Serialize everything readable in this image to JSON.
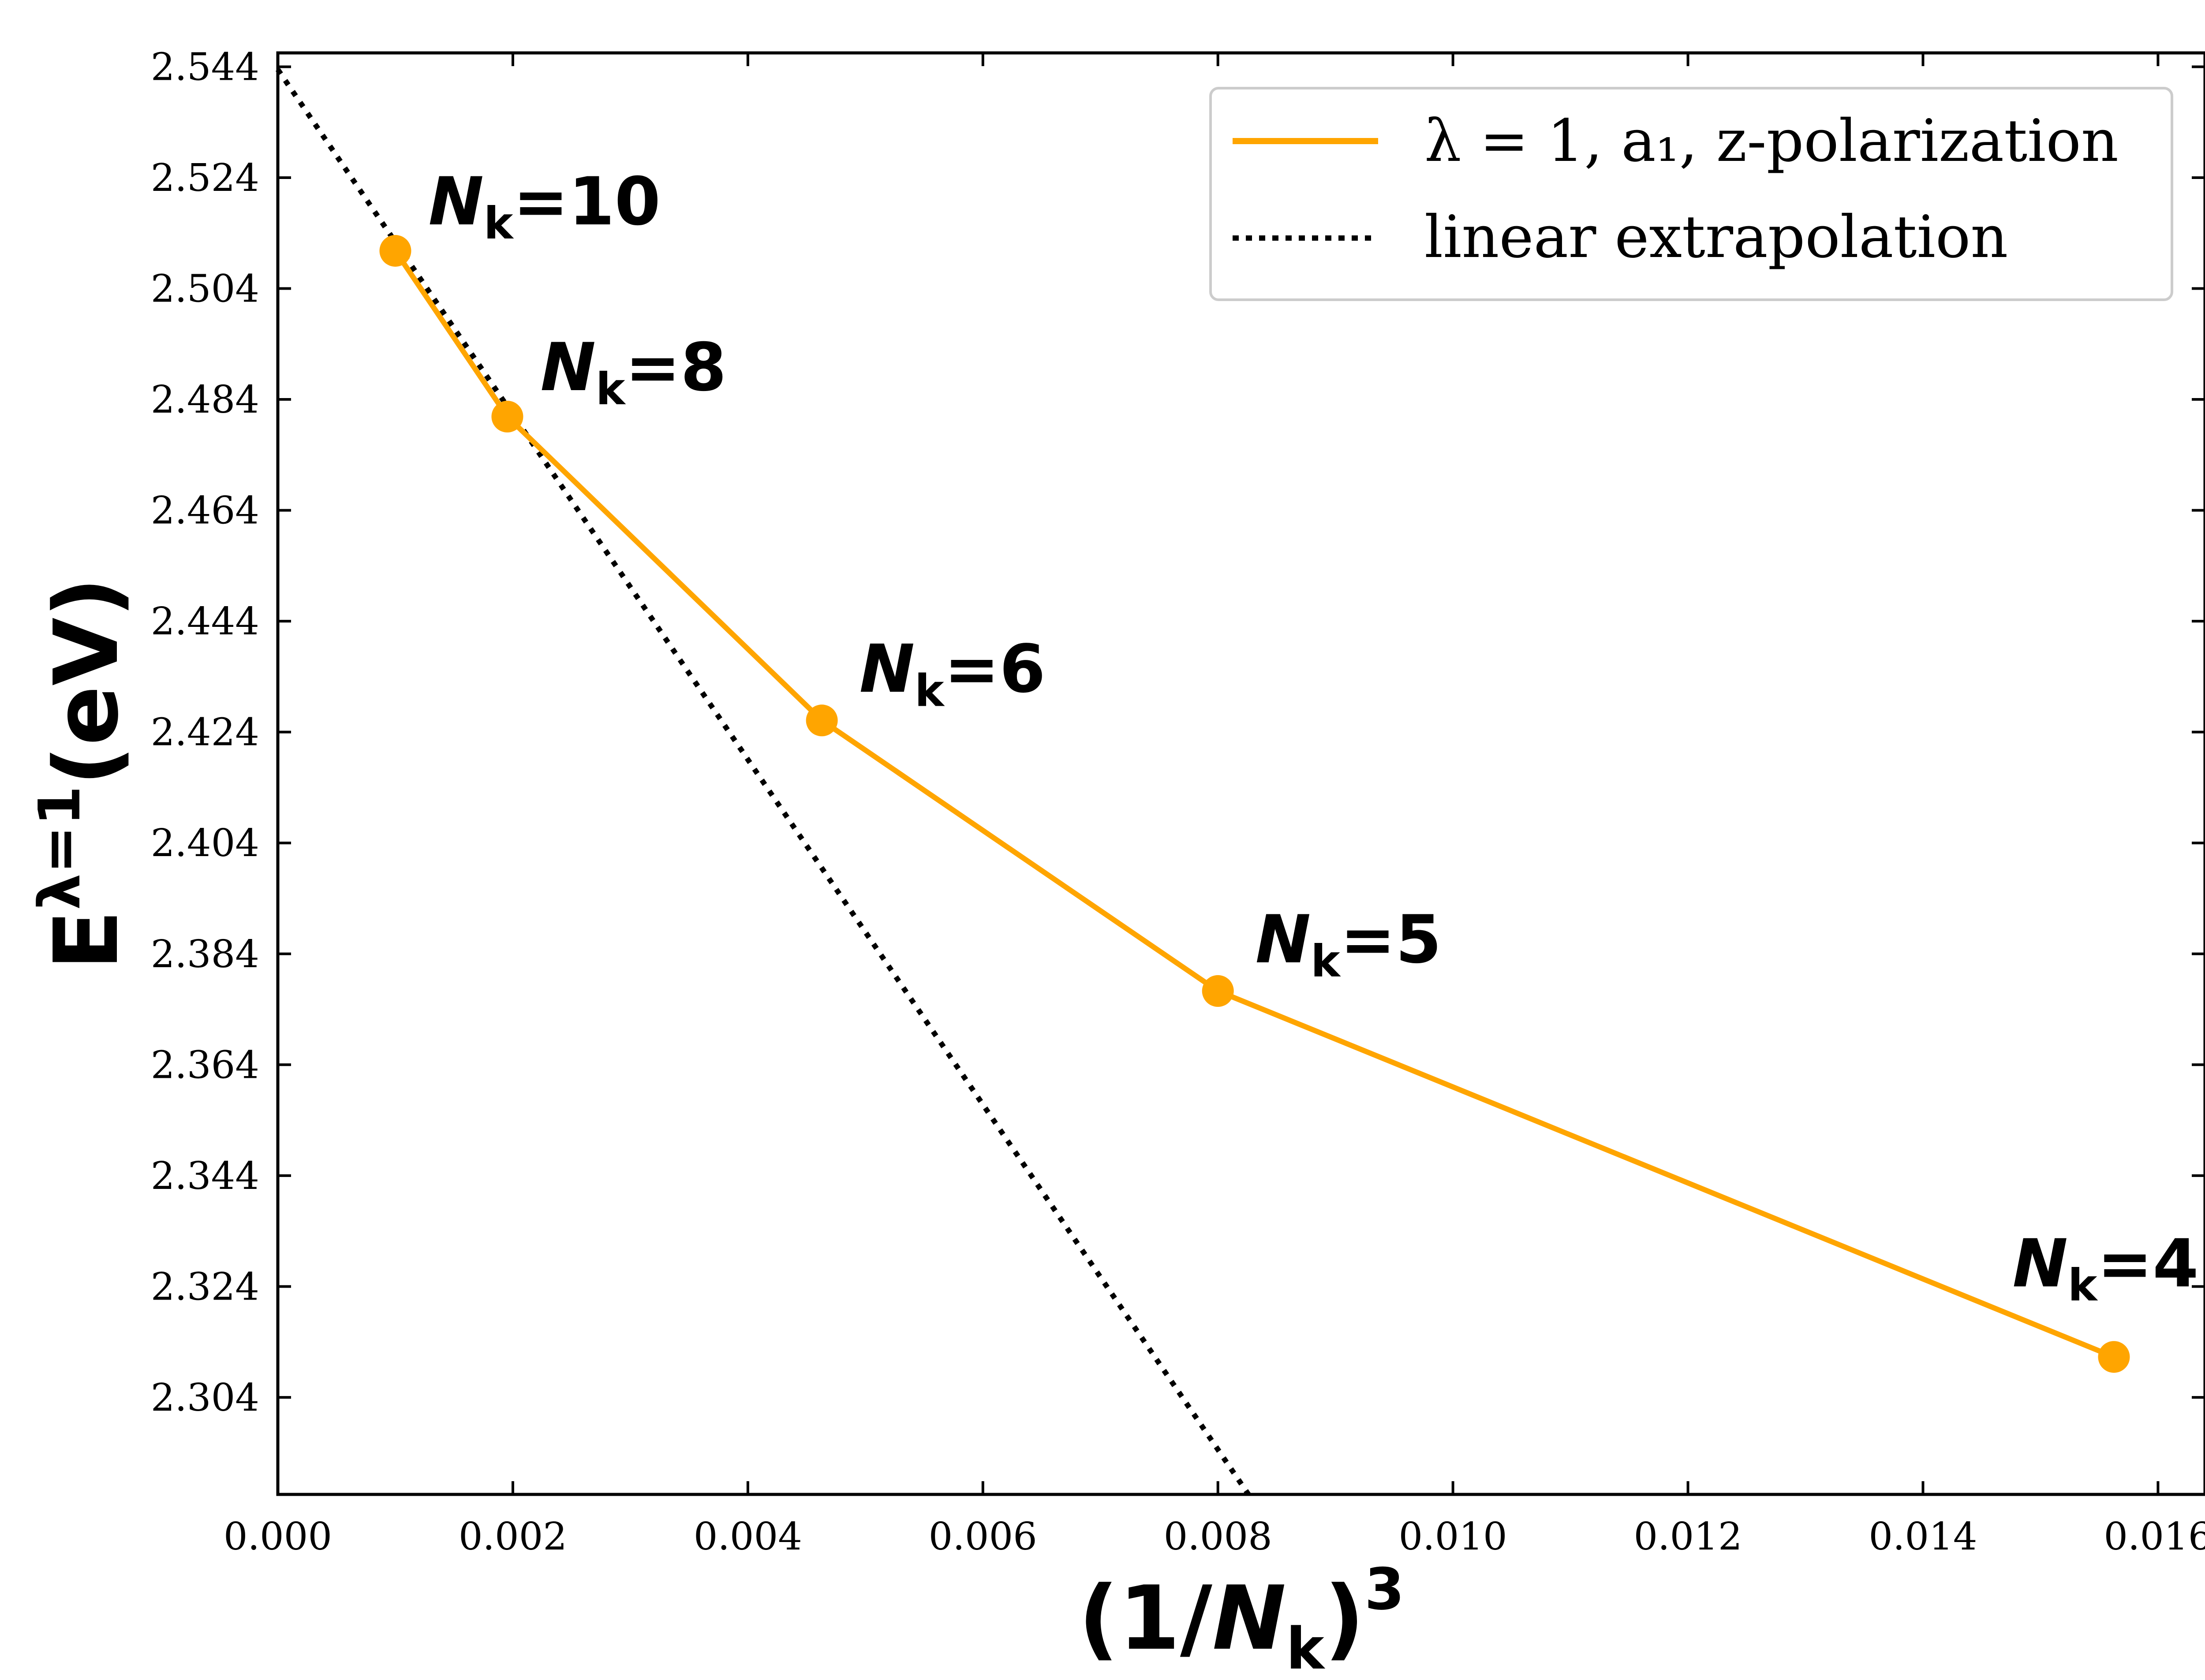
{
  "chart_data": {
    "type": "line",
    "title": "",
    "xlabel": "(1/N_k)^3",
    "ylabel": "E^{λ=1}(eV)",
    "xlim": [
      0.0,
      0.0164
    ],
    "ylim": [
      2.2865,
      2.5465
    ],
    "xticks": [
      0.0,
      0.002,
      0.004,
      0.006,
      0.008,
      0.01,
      0.012,
      0.014,
      0.016
    ],
    "xtick_labels": [
      "0.000",
      "0.002",
      "0.004",
      "0.006",
      "0.008",
      "0.010",
      "0.012",
      "0.014",
      "0.016"
    ],
    "yticks": [
      2.304,
      2.324,
      2.344,
      2.364,
      2.384,
      2.404,
      2.424,
      2.444,
      2.464,
      2.484,
      2.504,
      2.524,
      2.544
    ],
    "ytick_labels": [
      "2.304",
      "2.324",
      "2.344",
      "2.364",
      "2.384",
      "2.404",
      "2.424",
      "2.444",
      "2.464",
      "2.484",
      "2.504",
      "2.524",
      "2.544"
    ],
    "grid": false,
    "legend_position": "top-right",
    "series": [
      {
        "name": "λ = 1, a₁, z-polarization",
        "color": "#FFA500",
        "style": "solid-with-markers",
        "x": [
          0.001,
          0.001953125,
          0.00462963,
          0.008,
          0.015625
        ],
        "y": [
          2.5108,
          2.4809,
          2.4261,
          2.3773,
          2.3113
        ],
        "point_labels": [
          {
            "base": "N",
            "sub": "k",
            "rest": "=10"
          },
          {
            "base": "N",
            "sub": "k",
            "rest": "=8"
          },
          {
            "base": "N",
            "sub": "k",
            "rest": "=6"
          },
          {
            "base": "N",
            "sub": "k",
            "rest": "=5"
          },
          {
            "base": "N",
            "sub": "k",
            "rest": "=4"
          }
        ]
      },
      {
        "name": "linear extrapolation",
        "color": "#000000",
        "style": "dotted",
        "x": [
          0.0,
          0.00826
        ],
        "y": [
          2.5435,
          2.2865
        ]
      }
    ],
    "axis_title_parts": {
      "x": {
        "open": "(1/",
        "base": "N",
        "sub": "k",
        "close": ")",
        "sup": "3"
      },
      "y": {
        "base": "E",
        "sup": "λ=1",
        "rest": "(eV)"
      }
    }
  }
}
